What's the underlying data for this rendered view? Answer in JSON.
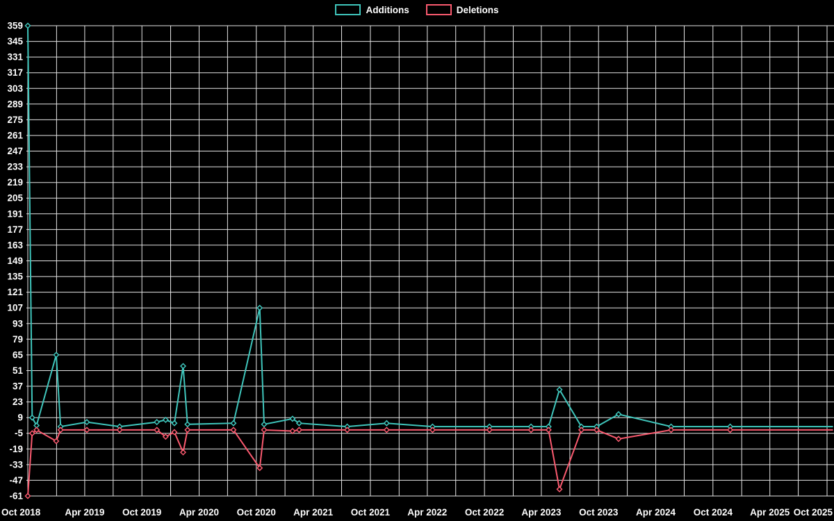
{
  "legend": {
    "additions_label": "Additions",
    "deletions_label": "Deletions"
  },
  "colors": {
    "additions": "#3fc6bc",
    "deletions": "#fa5a6f",
    "grid": "#e6e6e6",
    "background": "#000000",
    "text": "#ffffff"
  },
  "axes": {
    "y_ticks": [
      359,
      345,
      331,
      317,
      303,
      289,
      275,
      261,
      247,
      233,
      219,
      205,
      191,
      177,
      163,
      149,
      135,
      121,
      107,
      93,
      79,
      65,
      51,
      37,
      23,
      9,
      -5,
      -19,
      -33,
      -47,
      -61
    ],
    "x_tick_labels": [
      "Oct 2018",
      "Apr 2019",
      "Oct 2019",
      "Apr 2020",
      "Oct 2020",
      "Apr 2021",
      "Oct 2021",
      "Apr 2022",
      "Oct 2022",
      "Apr 2023",
      "Oct 2023",
      "Apr 2024",
      "Oct 2024",
      "Apr 2025",
      "Oct 2025"
    ]
  },
  "chart_data": {
    "type": "line",
    "x_range": [
      "2018-10-01",
      "2025-10-01"
    ],
    "ylim": [
      -61,
      359
    ],
    "y_tick_step": 14,
    "grid": true,
    "legend_position": "top-center",
    "series": [
      {
        "name": "Additions",
        "sign": "positive"
      },
      {
        "name": "Deletions",
        "sign": "negative"
      }
    ],
    "points": [
      {
        "date": "2018-10-01",
        "additions": 359,
        "deletions": -61
      },
      {
        "date": "2018-10-15",
        "additions": 9,
        "deletions": -5
      },
      {
        "date": "2018-10-29",
        "additions": 2,
        "deletions": -2
      },
      {
        "date": "2018-12-31",
        "additions": 65,
        "deletions": -12
      },
      {
        "date": "2019-01-14",
        "additions": 1,
        "deletions": -2
      },
      {
        "date": "2019-04-08",
        "additions": 5,
        "deletions": -2
      },
      {
        "date": "2019-07-22",
        "additions": 1,
        "deletions": -2
      },
      {
        "date": "2019-11-18",
        "additions": 5,
        "deletions": -2
      },
      {
        "date": "2019-12-16",
        "additions": 7,
        "deletions": -8
      },
      {
        "date": "2020-01-13",
        "additions": 4,
        "deletions": -4
      },
      {
        "date": "2020-02-10",
        "additions": 55,
        "deletions": -22
      },
      {
        "date": "2020-02-24",
        "additions": 3,
        "deletions": -2
      },
      {
        "date": "2020-07-20",
        "additions": 4,
        "deletions": -2
      },
      {
        "date": "2020-10-12",
        "additions": 107,
        "deletions": -36
      },
      {
        "date": "2020-10-26",
        "additions": 3,
        "deletions": -2
      },
      {
        "date": "2021-01-25",
        "additions": 8,
        "deletions": -3
      },
      {
        "date": "2021-02-15",
        "additions": 4,
        "deletions": -2
      },
      {
        "date": "2021-07-19",
        "additions": 1,
        "deletions": -2
      },
      {
        "date": "2021-11-22",
        "additions": 4,
        "deletions": -2
      },
      {
        "date": "2022-04-18",
        "additions": 1,
        "deletions": -2
      },
      {
        "date": "2022-10-17",
        "additions": 1,
        "deletions": -2
      },
      {
        "date": "2023-02-27",
        "additions": 1,
        "deletions": -2
      },
      {
        "date": "2023-04-24",
        "additions": 1,
        "deletions": -2
      },
      {
        "date": "2023-05-29",
        "additions": 34,
        "deletions": -55
      },
      {
        "date": "2023-08-07",
        "additions": 1,
        "deletions": -2
      },
      {
        "date": "2023-09-25",
        "additions": 1,
        "deletions": -2
      },
      {
        "date": "2023-12-04",
        "additions": 12,
        "deletions": -10
      },
      {
        "date": "2024-05-20",
        "additions": 1,
        "deletions": -2
      },
      {
        "date": "2024-11-25",
        "additions": 1,
        "deletions": -2
      },
      {
        "date": "2025-10-20",
        "additions": 1,
        "deletions": -2,
        "marker": false
      }
    ]
  }
}
